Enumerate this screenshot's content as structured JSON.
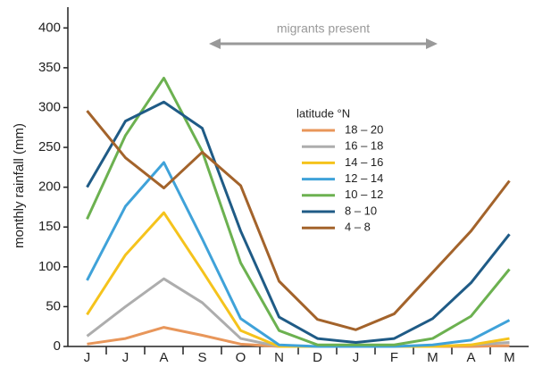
{
  "chart_data": {
    "type": "line",
    "y_label": "monthly rainfall (mm)",
    "annotation": "migrants present",
    "legend_title": "latitude °N",
    "categories": [
      "J",
      "J",
      "A",
      "S",
      "O",
      "N",
      "D",
      "J",
      "F",
      "M",
      "A",
      "M"
    ],
    "ylim": [
      0,
      425
    ],
    "yticks": [
      0,
      50,
      100,
      150,
      200,
      250,
      300,
      350,
      400
    ],
    "grid": false,
    "series": [
      {
        "name": "18 – 20",
        "color": "#e8965a",
        "values": [
          3,
          10,
          24,
          14,
          3,
          0,
          0,
          0,
          0,
          0,
          0,
          1
        ]
      },
      {
        "name": "16 – 18",
        "color": "#adadad",
        "values": [
          13,
          50,
          85,
          55,
          10,
          0,
          0,
          0,
          0,
          0,
          2,
          5
        ]
      },
      {
        "name": "14 – 16",
        "color": "#f5c31c",
        "values": [
          40,
          115,
          168,
          95,
          20,
          0,
          0,
          0,
          0,
          0,
          2,
          10
        ]
      },
      {
        "name": "12 – 14",
        "color": "#3fa2d9",
        "values": [
          83,
          176,
          231,
          135,
          35,
          2,
          0,
          0,
          0,
          2,
          8,
          33
        ]
      },
      {
        "name": "10 – 12",
        "color": "#6cb150",
        "values": [
          160,
          265,
          337,
          245,
          105,
          20,
          2,
          2,
          2,
          10,
          38,
          97
        ]
      },
      {
        "name": "8 – 10",
        "color": "#1f5b86",
        "values": [
          200,
          283,
          307,
          274,
          145,
          37,
          10,
          5,
          10,
          35,
          80,
          141
        ]
      },
      {
        "name": "4 – 8",
        "color": "#a3632b",
        "values": [
          296,
          237,
          199,
          244,
          202,
          82,
          34,
          21,
          41,
          93,
          145,
          208
        ]
      }
    ]
  }
}
